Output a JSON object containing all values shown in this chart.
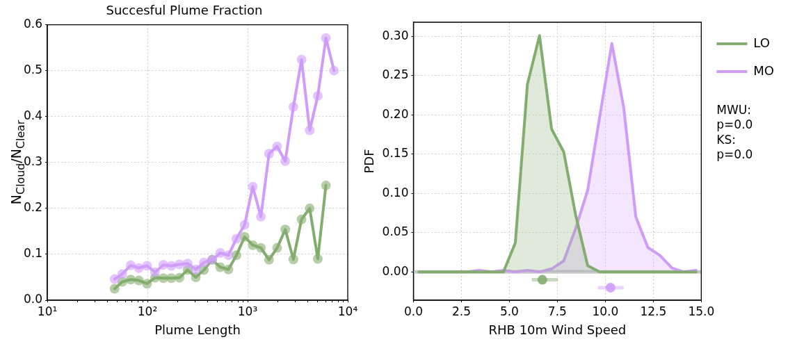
{
  "chart_data": [
    {
      "type": "line",
      "title": "Succesful Plume Fraction",
      "xlabel": "Plume Length",
      "ylabel": "N$_{Cloud}$/N$_{Clear}$",
      "log": "x",
      "xlim": [
        10,
        10000
      ],
      "xticks": [
        {
          "value": 10,
          "label": "10¹"
        },
        {
          "value": 20,
          "label": null
        },
        {
          "value": 30,
          "label": null
        },
        {
          "value": 40,
          "label": null
        },
        {
          "value": 50,
          "label": null
        },
        {
          "value": 60,
          "label": null
        },
        {
          "value": 70,
          "label": null
        },
        {
          "value": 80,
          "label": null
        },
        {
          "value": 90,
          "label": null
        },
        {
          "value": 100,
          "label": "10²"
        },
        {
          "value": 200,
          "label": null
        },
        {
          "value": 300,
          "label": null
        },
        {
          "value": 400,
          "label": null
        },
        {
          "value": 500,
          "label": null
        },
        {
          "value": 600,
          "label": null
        },
        {
          "value": 700,
          "label": null
        },
        {
          "value": 800,
          "label": null
        },
        {
          "value": 900,
          "label": null
        },
        {
          "value": 1000,
          "label": "10³"
        },
        {
          "value": 2000,
          "label": null
        },
        {
          "value": 3000,
          "label": null
        },
        {
          "value": 4000,
          "label": null
        },
        {
          "value": 5000,
          "label": null
        },
        {
          "value": 6000,
          "label": null
        },
        {
          "value": 7000,
          "label": null
        },
        {
          "value": 8000,
          "label": null
        },
        {
          "value": 9000,
          "label": null
        },
        {
          "value": 10000,
          "label": "10⁴"
        }
      ],
      "ylim": [
        0,
        0.6
      ],
      "yticks": [
        {
          "value": 0,
          "label": "0.0"
        },
        0.1,
        0.2,
        0.3,
        0.4,
        0.5,
        0.6
      ],
      "grid": true,
      "marker": "circle",
      "series": [
        {
          "color": "#d09cfa",
          "x": [
            47,
            56,
            68,
            82,
            99,
            119,
            144,
            173,
            209,
            252,
            304,
            366,
            442,
            533,
            643,
            774,
            933,
            1125,
            1357,
            1636,
            1972,
            2377,
            2866,
            3456,
            4168,
            5023,
            6053,
            7295
          ],
          "values": [
            0.046,
            0.057,
            0.076,
            0.07,
            0.075,
            0.061,
            0.077,
            0.075,
            0.078,
            0.08,
            0.067,
            0.082,
            0.088,
            0.103,
            0.098,
            0.134,
            0.164,
            0.247,
            0.182,
            0.319,
            0.335,
            0.303,
            0.421,
            0.524,
            0.37,
            0.445,
            0.571,
            0.5
          ]
        },
        {
          "color": "#83ad6e",
          "x": [
            47,
            56,
            68,
            82,
            99,
            119,
            144,
            173,
            209,
            252,
            304,
            366,
            442,
            533,
            643,
            774,
            933,
            1125,
            1357,
            1636,
            1972,
            2377,
            2866,
            3456,
            4168,
            5023,
            6053
          ],
          "values": [
            0.025,
            0.04,
            0.045,
            0.043,
            0.036,
            0.049,
            0.048,
            0.048,
            0.049,
            0.066,
            0.05,
            0.066,
            0.088,
            0.072,
            0.067,
            0.098,
            0.138,
            0.12,
            0.114,
            0.088,
            0.114,
            0.154,
            0.089,
            0.176,
            0.2,
            0.09,
            0.25
          ]
        }
      ]
    },
    {
      "type": "area",
      "xlabel": "RHB 10m Wind Speed",
      "ylabel": "PDF",
      "xlim": [
        0,
        15
      ],
      "xticks": [
        {
          "value": 0,
          "label": "0.0"
        },
        {
          "value": 2.5,
          "label": "2.5"
        },
        {
          "value": 5,
          "label": "5.0"
        },
        {
          "value": 7.5,
          "label": "7.5"
        },
        {
          "value": 10,
          "label": "10.0"
        },
        {
          "value": 12.5,
          "label": "12.5"
        },
        {
          "value": 15,
          "label": "15.0"
        }
      ],
      "ylim": [
        -0.036,
        0.318
      ],
      "yticks": [
        {
          "value": 0,
          "label": "0.00"
        },
        {
          "value": 0.05,
          "label": "0.05"
        },
        {
          "value": 0.1,
          "label": "0.10"
        },
        {
          "value": 0.15,
          "label": "0.15"
        },
        {
          "value": 0.2,
          "label": "0.20"
        },
        {
          "value": 0.25,
          "label": "0.25"
        },
        {
          "value": 0.3,
          "label": "0.30"
        }
      ],
      "grid": true,
      "legend": "right",
      "marker": "none",
      "ref_lines": [
        {
          "axis": "y",
          "value": 0,
          "color": "#c8ccc8"
        }
      ],
      "annotations": [
        "MWU:\np=0.0",
        "KS:\np=0.0"
      ],
      "series": [
        {
          "name": "LO",
          "color": "#83ad6e",
          "x": [
            0.29,
            0.92,
            1.55,
            2.17,
            2.8,
            3.43,
            4.06,
            4.69,
            5.31,
            5.94,
            6.57,
            7.2,
            7.83,
            8.45,
            9.08,
            9.71,
            10.34,
            10.96,
            11.59,
            12.22,
            12.85,
            13.47,
            14.1,
            14.73
          ],
          "values": [
            0,
            0,
            0,
            0,
            0,
            0,
            0,
            0,
            0.037,
            0.239,
            0.301,
            0.182,
            0.153,
            0.073,
            0.008,
            0,
            0,
            0,
            0,
            0,
            0,
            0,
            0,
            0
          ]
        },
        {
          "name": "MO",
          "color": "#d09cfa",
          "x": [
            0.29,
            0.92,
            1.55,
            2.17,
            2.8,
            3.43,
            4.06,
            4.69,
            5.31,
            5.94,
            6.57,
            7.2,
            7.83,
            8.45,
            9.08,
            9.71,
            10.34,
            10.96,
            11.59,
            12.22,
            12.85,
            13.47,
            14.1,
            14.73
          ],
          "values": [
            0,
            0,
            0,
            0,
            0,
            0.002,
            0,
            0.002,
            0,
            0.002,
            0,
            0.004,
            0.014,
            0.055,
            0.104,
            0.198,
            0.291,
            0.209,
            0.07,
            0.031,
            0.021,
            0.005,
            0,
            0.002
          ]
        },
        {
          "type": "scatter",
          "marker": "circle",
          "color": "#83ad6e",
          "x": [
            6.72
          ],
          "values": [
            -0.01
          ],
          "xerrors": [
            [
              6.17,
              7.54
            ]
          ]
        },
        {
          "type": "scatter",
          "marker": "circle",
          "color": "#d09cfa",
          "x": [
            10.27
          ],
          "values": [
            -0.02
          ],
          "xerrors": [
            [
              9.61,
              10.95
            ]
          ]
        }
      ]
    }
  ]
}
